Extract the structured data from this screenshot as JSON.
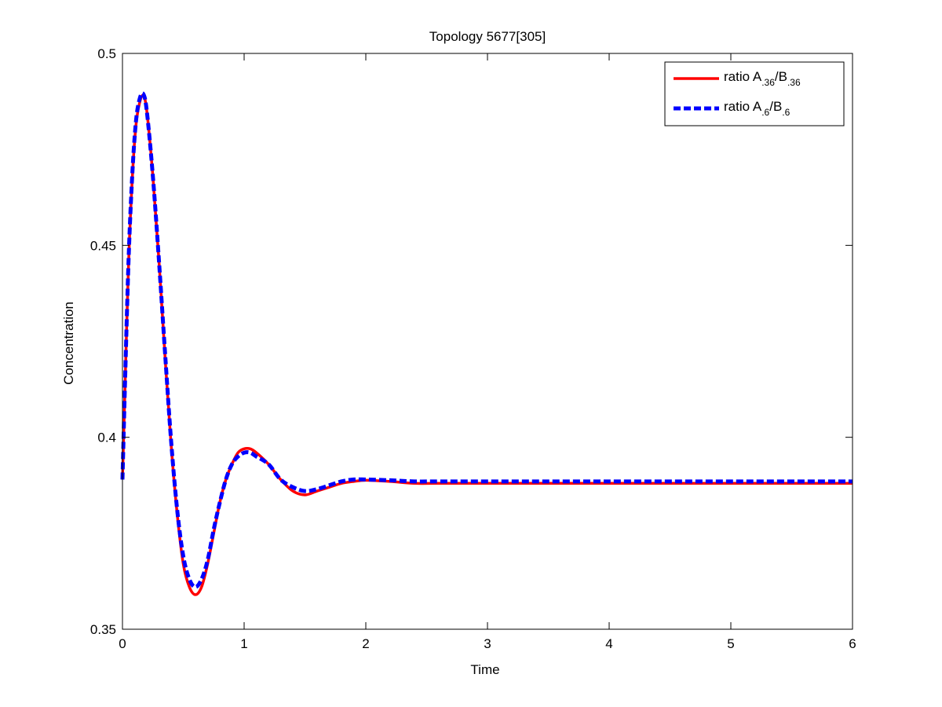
{
  "chart_data": {
    "type": "line",
    "title": "Topology 5677[305]",
    "xlabel": "Time",
    "ylabel": "Concentration",
    "xlim": [
      0,
      6
    ],
    "ylim": [
      0.35,
      0.5
    ],
    "xticks": [
      0,
      1,
      2,
      3,
      4,
      5,
      6
    ],
    "xtick_labels": [
      "0",
      "1",
      "2",
      "3",
      "4",
      "5",
      "6"
    ],
    "yticks": [
      0.35,
      0.4,
      0.45,
      0.5
    ],
    "ytick_labels": [
      "0.35",
      "0.4",
      "0.45",
      "0.5"
    ],
    "grid": false,
    "legend_position": "top-right",
    "series": [
      {
        "name": "ratio A.36/B.36",
        "legend": {
          "base1": "ratio A",
          "sub1": ".36",
          "base2": "/B",
          "sub2": ".36"
        },
        "color": "#ff0000",
        "style": "solid",
        "x": [
          0,
          0.02,
          0.05,
          0.08,
          0.11,
          0.14,
          0.17,
          0.2,
          0.25,
          0.3,
          0.35,
          0.4,
          0.45,
          0.5,
          0.55,
          0.6,
          0.65,
          0.7,
          0.75,
          0.8,
          0.85,
          0.9,
          0.95,
          1.0,
          1.05,
          1.1,
          1.2,
          1.3,
          1.4,
          1.5,
          1.6,
          1.7,
          1.8,
          1.9,
          2.0,
          2.2,
          2.4,
          2.6,
          3.0,
          4.0,
          5.0,
          6.0
        ],
        "y": [
          0.389,
          0.412,
          0.445,
          0.467,
          0.481,
          0.487,
          0.489,
          0.485,
          0.468,
          0.446,
          0.421,
          0.398,
          0.38,
          0.367,
          0.361,
          0.359,
          0.361,
          0.367,
          0.375,
          0.383,
          0.389,
          0.393,
          0.396,
          0.397,
          0.397,
          0.396,
          0.393,
          0.389,
          0.386,
          0.385,
          0.386,
          0.387,
          0.388,
          0.3885,
          0.3888,
          0.3885,
          0.388,
          0.388,
          0.388,
          0.388,
          0.388,
          0.388
        ]
      },
      {
        "name": "ratio A.6/B.6",
        "legend": {
          "base1": "ratio A",
          "sub1": ".6",
          "base2": "/B",
          "sub2": ".6"
        },
        "color": "#0000ff",
        "style": "dashed",
        "x": [
          0,
          0.02,
          0.05,
          0.08,
          0.11,
          0.14,
          0.17,
          0.2,
          0.25,
          0.3,
          0.35,
          0.4,
          0.45,
          0.5,
          0.55,
          0.6,
          0.65,
          0.7,
          0.75,
          0.8,
          0.85,
          0.9,
          0.95,
          1.0,
          1.05,
          1.1,
          1.2,
          1.3,
          1.4,
          1.5,
          1.6,
          1.7,
          1.8,
          1.9,
          2.0,
          2.2,
          2.4,
          2.6,
          3.0,
          4.0,
          5.0,
          6.0
        ],
        "y": [
          0.389,
          0.413,
          0.446,
          0.468,
          0.482,
          0.488,
          0.4895,
          0.485,
          0.468,
          0.446,
          0.422,
          0.399,
          0.381,
          0.369,
          0.363,
          0.361,
          0.363,
          0.368,
          0.376,
          0.383,
          0.389,
          0.393,
          0.395,
          0.396,
          0.396,
          0.395,
          0.393,
          0.389,
          0.387,
          0.386,
          0.3865,
          0.3875,
          0.3885,
          0.389,
          0.389,
          0.3888,
          0.3885,
          0.3885,
          0.3885,
          0.3885,
          0.3885,
          0.3885
        ]
      }
    ]
  }
}
